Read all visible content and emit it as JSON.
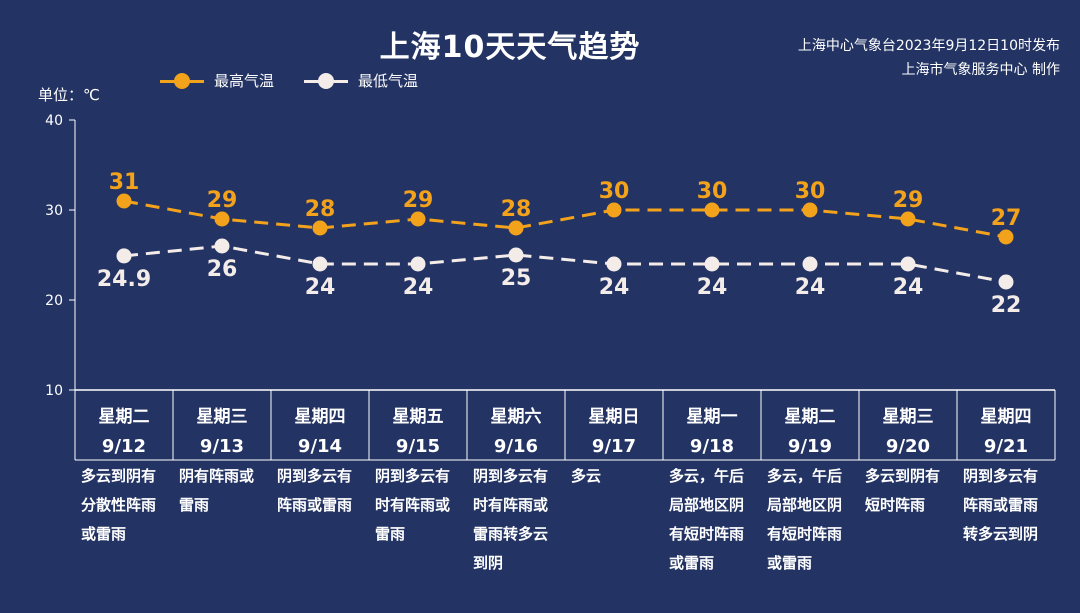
{
  "title": "上海10天天气趋势",
  "issuer": {
    "line1": "上海中心气象台2023年9月12日10时发布",
    "line2": "上海市气象服务中心 制作"
  },
  "unit_label": "单位：℃",
  "colors": {
    "background": "#233363",
    "high": "#f3a21b",
    "low": "#f3ece9",
    "axis": "#ffffff"
  },
  "chart_data": {
    "type": "line",
    "title": "上海10天天气趋势",
    "ylabel": "单位：℃",
    "ylim": [
      10,
      40
    ],
    "yticks": [
      10,
      20,
      30,
      40
    ],
    "legend_position": "top-left",
    "categories": [
      "9/12",
      "9/13",
      "9/14",
      "9/15",
      "9/16",
      "9/17",
      "9/18",
      "9/19",
      "9/20",
      "9/21"
    ],
    "weekdays": [
      "星期二",
      "星期三",
      "星期四",
      "星期五",
      "星期六",
      "星期日",
      "星期一",
      "星期二",
      "星期三",
      "星期四"
    ],
    "series": [
      {
        "name": "最高气温",
        "values": [
          31,
          29,
          28,
          29,
          28,
          30,
          30,
          30,
          29,
          27
        ],
        "labels": [
          "31",
          "29",
          "28",
          "29",
          "28",
          "30",
          "30",
          "30",
          "29",
          "27"
        ]
      },
      {
        "name": "最低气温",
        "values": [
          24.9,
          26,
          24,
          24,
          25,
          24,
          24,
          24,
          24,
          22
        ],
        "labels": [
          "24.9",
          "26",
          "24",
          "24",
          "25",
          "24",
          "24",
          "24",
          "24",
          "22"
        ]
      }
    ],
    "descriptions": [
      [
        "多云到阴有",
        "分散性阵雨",
        "或雷雨"
      ],
      [
        "阴有阵雨或",
        "雷雨"
      ],
      [
        "阴到多云有",
        "阵雨或雷雨"
      ],
      [
        "阴到多云有",
        "时有阵雨或",
        "雷雨"
      ],
      [
        "阴到多云有",
        "时有阵雨或",
        "雷雨转多云",
        "到阴"
      ],
      [
        "多云"
      ],
      [
        "多云，午后",
        "局部地区阴",
        "有短时阵雨",
        "或雷雨"
      ],
      [
        "多云，午后",
        "局部地区阴",
        "有短时阵雨",
        "或雷雨"
      ],
      [
        "多云到阴有",
        "短时阵雨"
      ],
      [
        "阴到多云有",
        "阵雨或雷雨",
        "转多云到阴"
      ]
    ]
  }
}
